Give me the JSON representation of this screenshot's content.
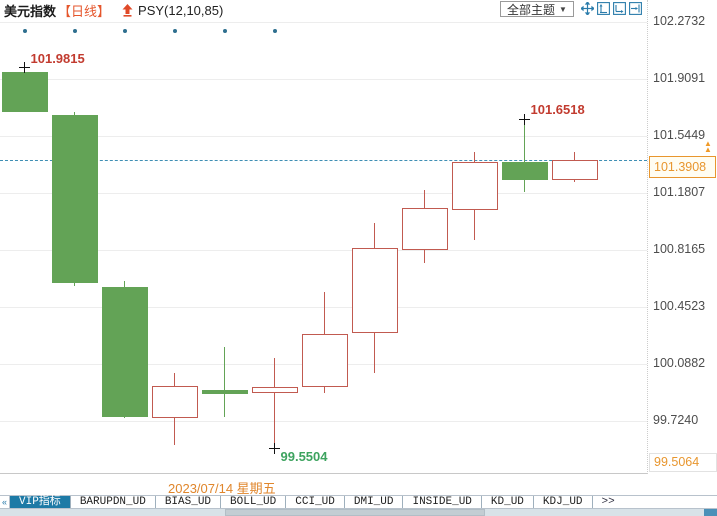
{
  "header": {
    "symbol": "美元指数",
    "period": "【日线】",
    "indicator": "PSY(12,10,85)",
    "theme_dropdown": "全部主题",
    "dropdown_caret": "▼",
    "toolbar_icons": [
      "pan-icon",
      "scale-y-axis-icon",
      "scale-x-axis-icon",
      "go-to-latest-icon"
    ]
  },
  "chart_data": {
    "type": "candlestick",
    "title": "美元指数 日线 (US Dollar Index, daily)",
    "y_axis": {
      "ticks": [
        "102.2732",
        "101.9091",
        "101.5449",
        "101.1807",
        "100.8165",
        "100.4523",
        "100.0882",
        "99.7240"
      ],
      "bottom_label": "99.5064"
    },
    "current_price": "101.3908",
    "price_arrow": "▲",
    "date_label": "2023/07/14 星期五",
    "candles": [
      {
        "o": 101.954,
        "h": 101.9815,
        "l": 101.698,
        "c": 101.698,
        "dir": "down"
      },
      {
        "o": 101.679,
        "h": 101.698,
        "l": 100.586,
        "c": 100.606,
        "dir": "down"
      },
      {
        "o": 100.58,
        "h": 100.618,
        "l": 99.744,
        "c": 99.749,
        "dir": "down"
      },
      {
        "o": 99.743,
        "h": 100.03,
        "l": 99.57,
        "c": 99.947,
        "dir": "up"
      },
      {
        "o": 99.921,
        "h": 100.196,
        "l": 99.749,
        "c": 99.896,
        "dir": "down"
      },
      {
        "o": 99.902,
        "h": 100.127,
        "l": 99.5504,
        "c": 99.941,
        "dir": "up"
      },
      {
        "o": 99.941,
        "h": 100.548,
        "l": 99.902,
        "c": 100.28,
        "dir": "up"
      },
      {
        "o": 100.286,
        "h": 100.989,
        "l": 100.03,
        "c": 100.829,
        "dir": "up"
      },
      {
        "o": 100.816,
        "h": 101.2,
        "l": 100.733,
        "c": 101.085,
        "dir": "up"
      },
      {
        "o": 101.072,
        "h": 101.443,
        "l": 100.88,
        "c": 101.379,
        "dir": "up"
      },
      {
        "o": 101.379,
        "h": 101.6518,
        "l": 101.187,
        "c": 101.264,
        "dir": "down"
      },
      {
        "o": 101.264,
        "h": 101.443,
        "l": 101.251,
        "c": 101.3908,
        "dir": "up"
      }
    ],
    "annotations": [
      {
        "text": "101.9815",
        "price": 101.9815,
        "candle": 0,
        "anchor": "high",
        "placement": "above",
        "color": "#c23b2f"
      },
      {
        "text": "101.6518",
        "price": 101.6518,
        "candle": 10,
        "anchor": "high",
        "placement": "above",
        "color": "#c23b2f"
      },
      {
        "text": "99.5504",
        "price": 99.5504,
        "candle": 5,
        "anchor": "low",
        "placement": "below",
        "color": "#3da35f"
      }
    ],
    "dot_markers": {
      "candles": [
        0,
        1,
        2,
        3,
        4,
        5
      ]
    },
    "colors": {
      "up_border": "#c15a50",
      "down_fill": "#63a356",
      "dashed_line": "#3f8fb4",
      "price_label": "#e8962e",
      "grid": "#ededed",
      "dot": "#2e6f8f"
    },
    "axis_range": [
      99.5064,
      102.2732
    ],
    "grid": true,
    "legend_position": "none"
  },
  "footer": {
    "tab_scroll_glyph": "«",
    "tabs": [
      {
        "label": "VIP指标",
        "selected": true
      },
      {
        "label": "BARUPDN_UD",
        "selected": false
      },
      {
        "label": "BIAS_UD",
        "selected": false
      },
      {
        "label": "BOLL_UD",
        "selected": false
      },
      {
        "label": "CCI_UD",
        "selected": false
      },
      {
        "label": "DMI_UD",
        "selected": false
      },
      {
        "label": "INSIDE_UD",
        "selected": false
      },
      {
        "label": "KD_UD",
        "selected": false
      },
      {
        "label": "KDJ_UD",
        "selected": false
      },
      {
        "label": ">>",
        "selected": false
      }
    ]
  }
}
